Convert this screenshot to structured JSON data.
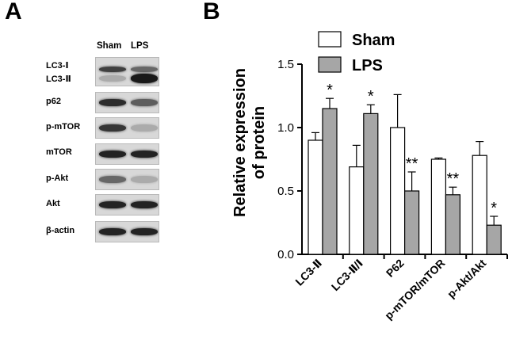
{
  "panel_a": {
    "letter": "A",
    "columns": [
      "Sham",
      "LPS"
    ],
    "rows": [
      {
        "label": "LC3-Ⅰ",
        "sham": 0.75,
        "lps": 0.55
      },
      {
        "label": "LC3-Ⅱ",
        "sham": 0.2,
        "lps": 0.95
      },
      {
        "label": "p62",
        "sham": 0.85,
        "lps": 0.6
      },
      {
        "label": "p-mTOR",
        "sham": 0.8,
        "lps": 0.2
      },
      {
        "label": "mTOR",
        "sham": 0.9,
        "lps": 0.9
      },
      {
        "label": "p-Akt",
        "sham": 0.55,
        "lps": 0.2
      },
      {
        "label": "Akt",
        "sham": 0.9,
        "lps": 0.9
      },
      {
        "label": "β-actin",
        "sham": 0.9,
        "lps": 0.9
      }
    ]
  },
  "panel_b": {
    "letter": "B"
  },
  "chart_data": {
    "type": "bar",
    "title": "",
    "xlabel": "",
    "ylabel": "Relative expression of protein",
    "ylabel_lines": [
      "Relative expression",
      "of protein"
    ],
    "categories": [
      "LC3-Ⅱ",
      "LC3-Ⅱ/Ⅰ",
      "P62",
      "p-mTOR/mTOR",
      "p-Akt/Akt"
    ],
    "series": [
      {
        "name": "Sham",
        "fill": "#ffffff",
        "values": [
          0.9,
          0.69,
          1.0,
          0.75,
          0.78
        ],
        "errors": [
          0.06,
          0.17,
          0.26,
          0.01,
          0.11
        ],
        "significance": [
          "",
          "",
          "",
          "",
          ""
        ]
      },
      {
        "name": "LPS",
        "fill": "#a6a6a6",
        "values": [
          1.15,
          1.11,
          0.5,
          0.47,
          0.23
        ],
        "errors": [
          0.08,
          0.07,
          0.15,
          0.06,
          0.07
        ],
        "significance": [
          "*",
          "*",
          "**",
          "**",
          "*"
        ]
      }
    ],
    "ylim": [
      0,
      1.5
    ],
    "yticks": [
      "0.0",
      "0.5",
      "1.0",
      "1.5"
    ],
    "legend": "top-left",
    "grid": false
  }
}
